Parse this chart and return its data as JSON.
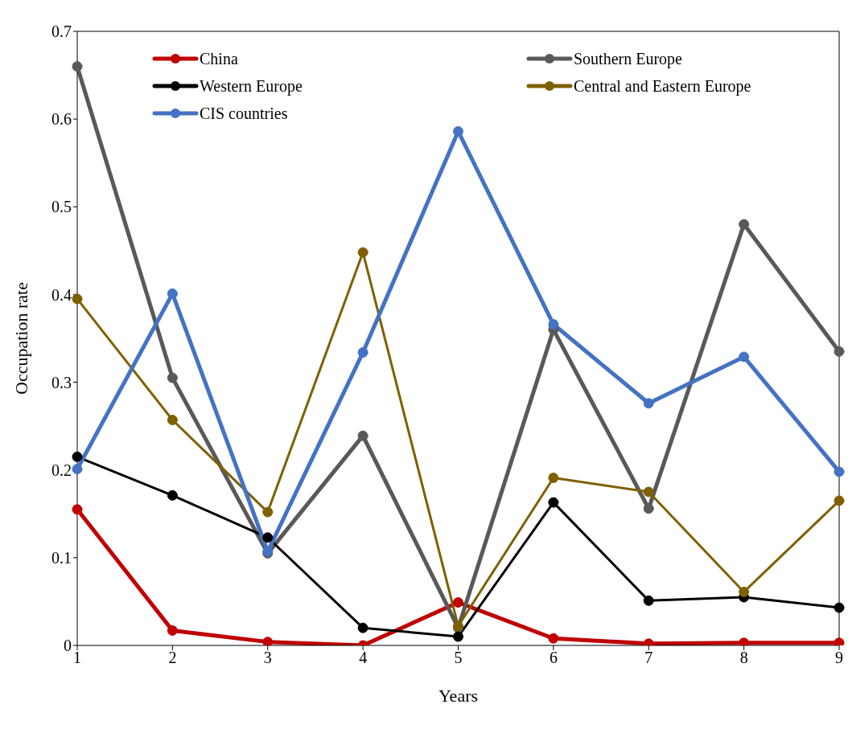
{
  "chart_data": {
    "type": "line",
    "xlabel": "Years",
    "ylabel": "Occupation rate",
    "categories": [
      "1",
      "2",
      "3",
      "4",
      "5",
      "6",
      "7",
      "8",
      "9"
    ],
    "series": [
      {
        "name": "China",
        "color": "#c00000",
        "values": [
          0.155,
          0.017,
          0.004,
          0,
          0.049,
          0.008,
          0.002,
          0.003,
          0.003
        ]
      },
      {
        "name": "Southern Europe",
        "color": "#595959",
        "values": [
          0.66,
          0.305,
          0.105,
          0.239,
          0.02,
          0.36,
          0.156,
          0.48,
          0.335
        ]
      },
      {
        "name": "Western Europe",
        "color": "#000000",
        "values": [
          0.215,
          0.171,
          0.123,
          0.02,
          0.01,
          0.163,
          0.051,
          0.055,
          0.043
        ]
      },
      {
        "name": "Central and Eastern Europe",
        "color": "#7f6000",
        "values": [
          0.395,
          0.257,
          0.152,
          0.448,
          0.022,
          0.191,
          0.175,
          0.061,
          0.165
        ]
      },
      {
        "name": "CIS countries",
        "color": "#4472c4",
        "values": [
          0.201,
          0.401,
          0.107,
          0.334,
          0.586,
          0.366,
          0.276,
          0.329,
          0.198
        ]
      }
    ],
    "ylim": [
      0,
      0.7
    ],
    "yticks": [
      0,
      0.1,
      0.2,
      0.3,
      0.4,
      0.5,
      0.6,
      0.7
    ],
    "grid": false,
    "legend": "top",
    "marker": "circle",
    "line_style": "solid"
  }
}
